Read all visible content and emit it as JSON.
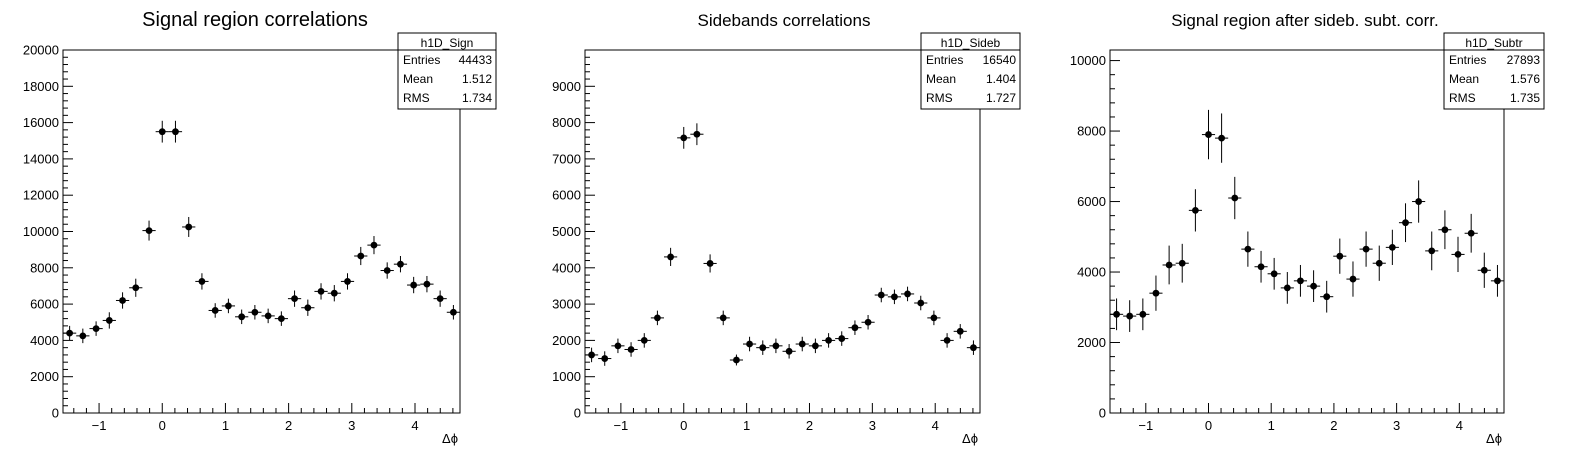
{
  "chart_data": [
    {
      "type": "scatter",
      "title": "Signal region correlations",
      "xlabel": "Δϕ",
      "ylabel": "",
      "xlim": [
        -1.5708,
        4.7124
      ],
      "ylim": [
        0,
        20000
      ],
      "y_ticks": [
        0,
        2000,
        4000,
        6000,
        8000,
        10000,
        12000,
        14000,
        16000,
        18000,
        20000
      ],
      "x_ticks": [
        -1,
        0,
        1,
        2,
        3,
        4
      ],
      "stats": {
        "name": "h1D_Sign",
        "entries_label": "Entries",
        "entries": "44433",
        "mean_label": "Mean",
        "mean": "1.512",
        "rms_label": "RMS",
        "rms": "1.734"
      },
      "series": [
        {
          "x": [
            -1.466,
            -1.257,
            -1.047,
            -0.838,
            -0.628,
            -0.419,
            -0.209,
            0.0,
            0.209,
            0.419,
            0.628,
            0.838,
            1.047,
            1.257,
            1.466,
            1.676,
            1.885,
            2.094,
            2.304,
            2.513,
            2.723,
            2.932,
            3.142,
            3.351,
            3.56,
            3.77,
            3.979,
            4.189,
            4.398,
            4.608
          ],
          "y": [
            4400,
            4250,
            4650,
            5100,
            6200,
            6900,
            10050,
            15500,
            15500,
            10250,
            7250,
            5650,
            5900,
            5300,
            5550,
            5350,
            5200,
            6300,
            5800,
            6700,
            6600,
            7250,
            8650,
            9250,
            7850,
            8200,
            7050,
            7100,
            6300,
            5550
          ],
          "yerr": [
            400,
            400,
            400,
            450,
            450,
            500,
            550,
            600,
            600,
            550,
            450,
            400,
            400,
            400,
            400,
            400,
            400,
            450,
            450,
            450,
            450,
            450,
            500,
            500,
            450,
            450,
            450,
            450,
            450,
            400
          ]
        }
      ]
    },
    {
      "type": "scatter",
      "title": "Sidebands correlations",
      "xlabel": "Δϕ",
      "ylabel": "",
      "xlim": [
        -1.5708,
        4.7124
      ],
      "ylim": [
        0,
        10000
      ],
      "y_ticks": [
        0,
        1000,
        2000,
        3000,
        4000,
        5000,
        6000,
        7000,
        8000,
        9000
      ],
      "x_ticks": [
        -1,
        0,
        1,
        2,
        3,
        4
      ],
      "stats": {
        "name": "h1D_Sideb",
        "entries_label": "Entries",
        "entries": "16540",
        "mean_label": "Mean",
        "mean": "1.404",
        "rms_label": "RMS",
        "rms": "1.727"
      },
      "series": [
        {
          "x": [
            -1.466,
            -1.257,
            -1.047,
            -0.838,
            -0.628,
            -0.419,
            -0.209,
            0.0,
            0.209,
            0.419,
            0.628,
            0.838,
            1.047,
            1.257,
            1.466,
            1.676,
            1.885,
            2.094,
            2.304,
            2.513,
            2.723,
            2.932,
            3.142,
            3.351,
            3.56,
            3.77,
            3.979,
            4.189,
            4.398,
            4.608
          ],
          "y": [
            1600,
            1500,
            1850,
            1750,
            2000,
            2620,
            4300,
            7580,
            7680,
            4120,
            2620,
            1460,
            1900,
            1800,
            1850,
            1700,
            1900,
            1850,
            2000,
            2050,
            2350,
            2500,
            3250,
            3200,
            3280,
            3030,
            2620,
            2000,
            2250,
            1800
          ],
          "yerr": [
            200,
            200,
            200,
            200,
            200,
            200,
            250,
            300,
            300,
            250,
            200,
            150,
            200,
            200,
            200,
            200,
            200,
            200,
            200,
            200,
            200,
            200,
            200,
            200,
            200,
            200,
            200,
            200,
            200,
            200
          ]
        }
      ]
    },
    {
      "type": "scatter",
      "title": "Signal region after sideb. subt. corr.",
      "xlabel": "Δϕ",
      "ylabel": "",
      "xlim": [
        -1.5708,
        4.7124
      ],
      "ylim": [
        0,
        10300
      ],
      "y_ticks": [
        0,
        2000,
        4000,
        6000,
        8000,
        10000
      ],
      "x_ticks": [
        -1,
        0,
        1,
        2,
        3,
        4
      ],
      "stats": {
        "name": "h1D_Subtr",
        "entries_label": "Entries",
        "entries": "27893",
        "mean_label": "Mean",
        "mean": "1.576",
        "rms_label": "RMS",
        "rms": "1.735"
      },
      "series": [
        {
          "x": [
            -1.466,
            -1.257,
            -1.047,
            -0.838,
            -0.628,
            -0.419,
            -0.209,
            0.0,
            0.209,
            0.419,
            0.628,
            0.838,
            1.047,
            1.257,
            1.466,
            1.676,
            1.885,
            2.094,
            2.304,
            2.513,
            2.723,
            2.932,
            3.142,
            3.351,
            3.56,
            3.77,
            3.979,
            4.189,
            4.398,
            4.608
          ],
          "y": [
            2800,
            2750,
            2800,
            3400,
            4200,
            4250,
            5750,
            7900,
            7800,
            6100,
            4650,
            4150,
            3950,
            3550,
            3750,
            3600,
            3300,
            4450,
            3800,
            4650,
            4250,
            4700,
            5400,
            6000,
            4600,
            5200,
            4500,
            5100,
            4050,
            3750
          ],
          "yerr": [
            450,
            450,
            450,
            500,
            550,
            550,
            600,
            700,
            700,
            600,
            500,
            450,
            450,
            450,
            450,
            450,
            450,
            500,
            500,
            500,
            500,
            500,
            550,
            600,
            550,
            550,
            500,
            550,
            500,
            450
          ]
        }
      ]
    }
  ]
}
